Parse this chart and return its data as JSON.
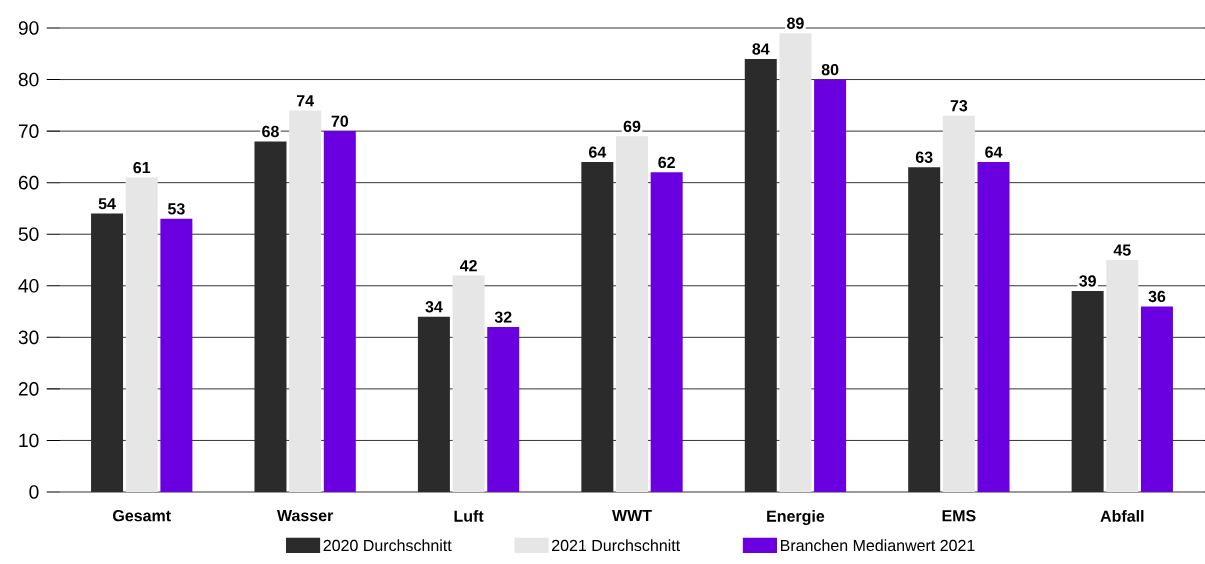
{
  "chart_data": {
    "type": "bar",
    "categories": [
      "Gesamt",
      "Wasser",
      "Luft",
      "WWT",
      "Energie",
      "EMS",
      "Abfall"
    ],
    "series": [
      {
        "name": "2020 Durchschnitt",
        "color": "#2b2b2b",
        "values": [
          54,
          68,
          34,
          64,
          84,
          63,
          39
        ]
      },
      {
        "name": "2021 Durchschnitt",
        "color": "#e6e6e6",
        "values": [
          61,
          74,
          42,
          69,
          89,
          73,
          45
        ]
      },
      {
        "name": "Branchen Medianwert 2021",
        "color": "#6a00e0",
        "values": [
          53,
          70,
          32,
          62,
          80,
          64,
          36
        ]
      }
    ],
    "ylim": [
      0,
      90
    ],
    "yticks": [
      0,
      10,
      20,
      30,
      40,
      50,
      60,
      70,
      80,
      90
    ],
    "grid": "y",
    "legend": "bottom",
    "data_labels": true
  }
}
